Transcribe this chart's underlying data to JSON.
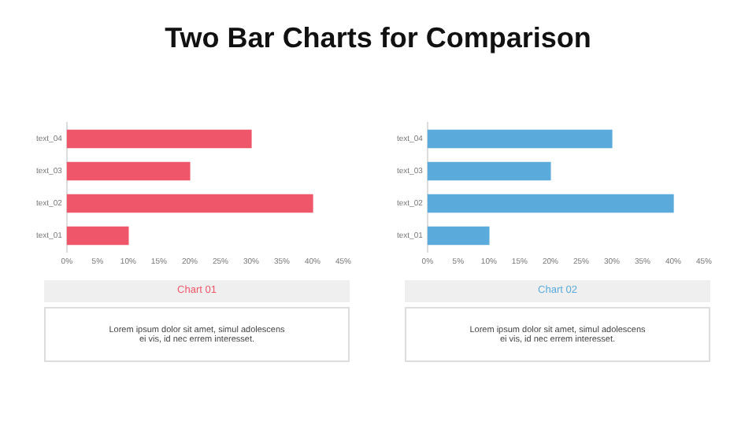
{
  "chart_data": [
    {
      "type": "bar",
      "title": "Two Bar Charts for Comparison",
      "orientation": "horizontal",
      "categories": [
        "text_04",
        "text_03",
        "text_02",
        "text_01"
      ],
      "series": [
        {
          "color": "#f0566a",
          "values": [
            30,
            20,
            40,
            10
          ]
        }
      ],
      "xlim": [
        0,
        45
      ],
      "xticks": [
        {
          "value": 0,
          "label": "0%"
        },
        {
          "value": 5,
          "label": "5%"
        },
        {
          "value": 10,
          "label": "10%"
        },
        {
          "value": 15,
          "label": "15%"
        },
        {
          "value": 20,
          "label": "20%"
        },
        {
          "value": 25,
          "label": "25%"
        },
        {
          "value": 30,
          "label": "30%"
        },
        {
          "value": 35,
          "label": "35%"
        },
        {
          "value": 40,
          "label": "40%"
        },
        {
          "value": 45,
          "label": "45%"
        }
      ],
      "grid": false,
      "legend": false,
      "annotations": [
        "Chart 01",
        "Lorem ipsum dolor sit amet, simul adolescens ei vis, id nec errem interesset."
      ]
    },
    {
      "type": "bar",
      "orientation": "horizontal",
      "categories": [
        "text_04",
        "text_03",
        "text_02",
        "text_01"
      ],
      "series": [
        {
          "color": "#5aabdc",
          "values": [
            30,
            20,
            40,
            10
          ]
        }
      ],
      "xlim": [
        0,
        45
      ],
      "xticks": [
        {
          "value": 0,
          "label": "0%"
        },
        {
          "value": 5,
          "label": "5%"
        },
        {
          "value": 10,
          "label": "10%"
        },
        {
          "value": 15,
          "label": "15%"
        },
        {
          "value": 20,
          "label": "20%"
        },
        {
          "value": 25,
          "label": "25%"
        },
        {
          "value": 30,
          "label": "30%"
        },
        {
          "value": 35,
          "label": "35%"
        },
        {
          "value": 40,
          "label": "40%"
        },
        {
          "value": 45,
          "label": "45%"
        }
      ],
      "grid": false,
      "legend": false,
      "annotations": [
        "Chart 02",
        "Lorem ipsum dolor sit amet, simul adolescens ei vis, id nec errem interesset."
      ]
    }
  ]
}
